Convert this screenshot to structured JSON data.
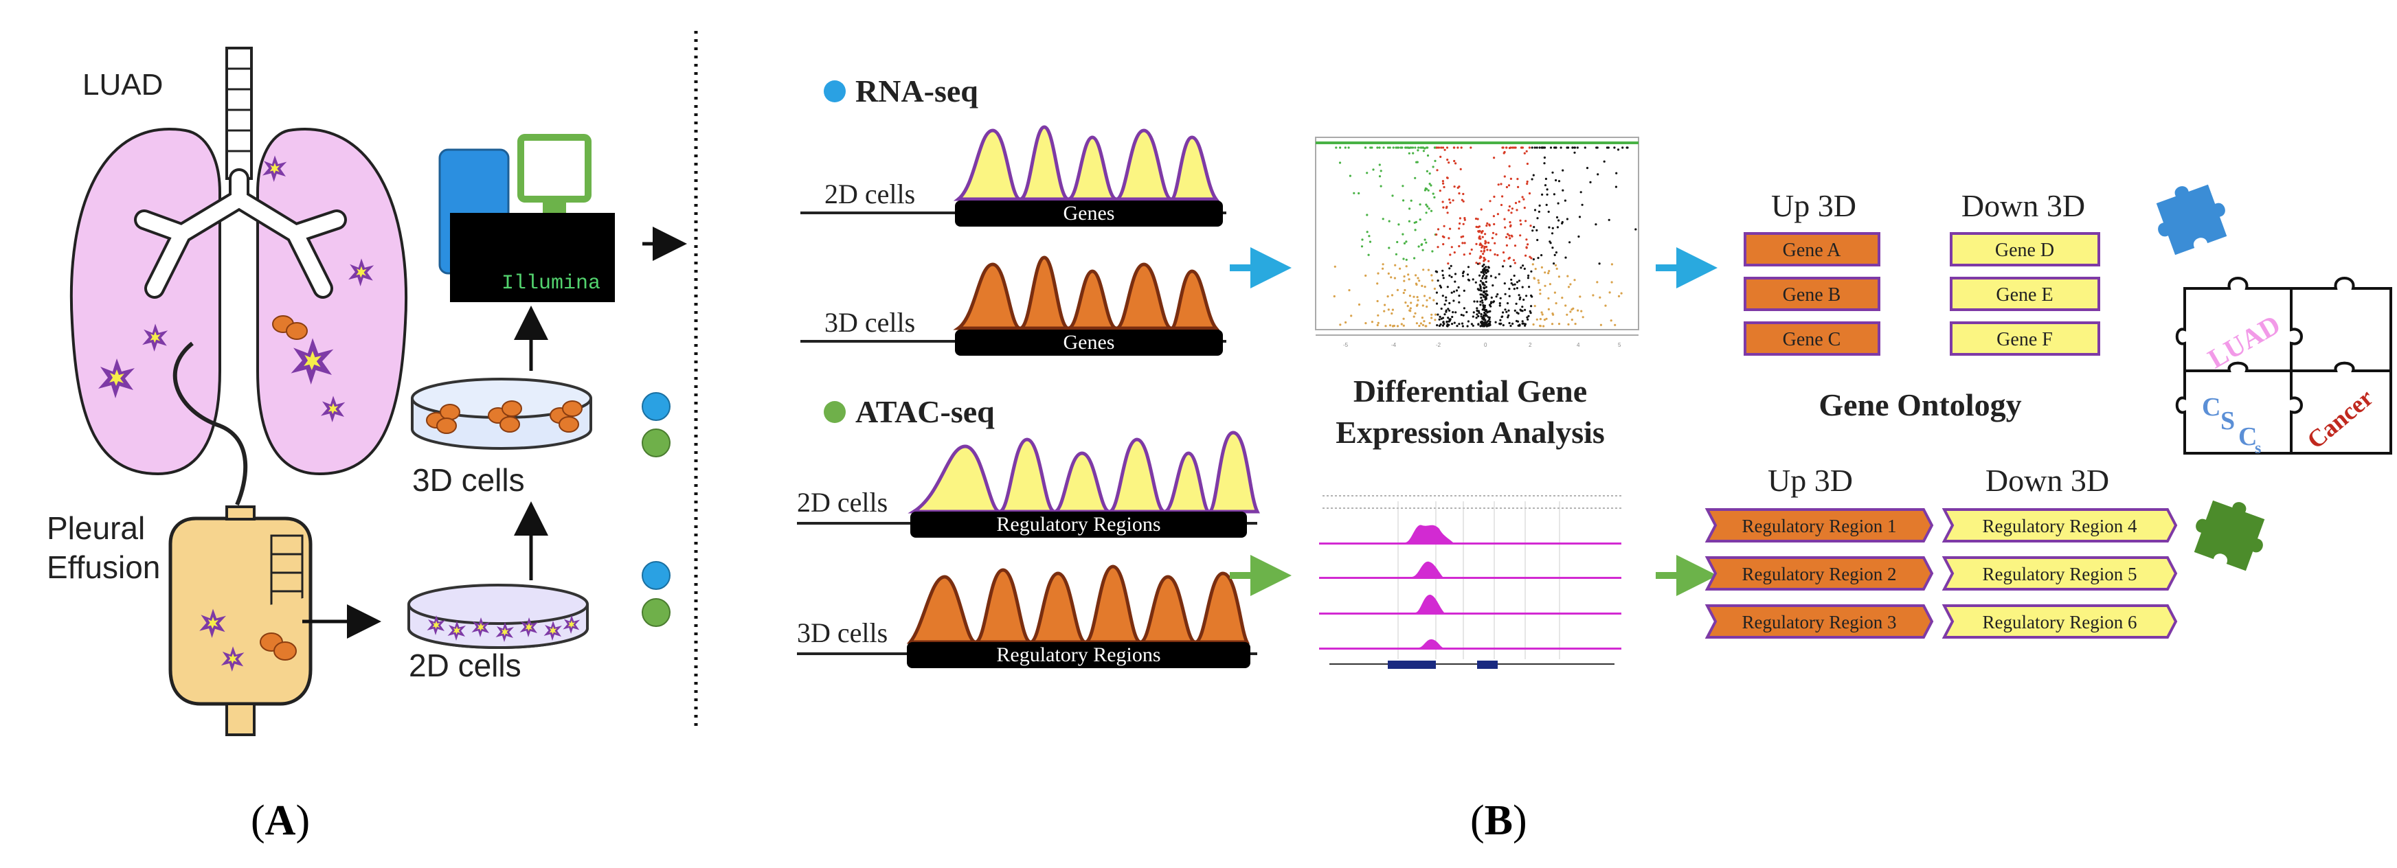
{
  "colors": {
    "lung_fill": "#f2c6f2",
    "purple": "#7e3aa6",
    "peak_yellow": "#fbf582",
    "peak_orange": "#e37a2c",
    "rna_dot": "#2aa1e3",
    "atac_dot": "#6fb04a",
    "blue_arrow": "#29a9df",
    "green_arrow": "#6cb34a",
    "puzzle_blue": "#3b8dd6",
    "puzzle_green": "#4c8c2b",
    "volcano_red": "#d73a24",
    "volcano_green": "#49b245",
    "track_magenta": "#d22ad2",
    "illumina_green": "#53d36e"
  },
  "panel_a": {
    "luad": "LUAD",
    "pleural_line1": "Pleural",
    "pleural_line2": "Effusion",
    "illumina": "Illumina",
    "cells_3d": "3D cells",
    "cells_2d": "2D cells",
    "label": "A"
  },
  "rna_seq": {
    "title": "RNA-seq",
    "row1_label": "2D cells",
    "row2_label": "3D cells",
    "box_label": "Genes"
  },
  "atac_seq": {
    "title": "ATAC-seq",
    "row1_label": "2D cells",
    "row2_label": "3D cells",
    "box_label": "Regulatory Regions"
  },
  "dge": {
    "line1": "Differential Gene",
    "line2": "Expression Analysis"
  },
  "gene_ontology": "Gene Ontology",
  "genes": {
    "up_header": "Up 3D",
    "down_header": "Down 3D",
    "up": [
      "Gene A",
      "Gene B",
      "Gene C"
    ],
    "down": [
      "Gene D",
      "Gene E",
      "Gene F"
    ]
  },
  "regions": {
    "up_header": "Up 3D",
    "down_header": "Down 3D",
    "up": [
      "Regulatory Region 1",
      "Regulatory Region 2",
      "Regulatory Region 3"
    ],
    "down": [
      "Regulatory Region 4",
      "Regulatory Region 5",
      "Regulatory Region 6"
    ]
  },
  "puzzle_words": {
    "luad": "LUAD",
    "cscs_c1": "C",
    "cscs_s1": "S",
    "cscs_c2": "C",
    "cscs_s2": "s",
    "cancer": "Cancer"
  },
  "panel_b_label": "B"
}
